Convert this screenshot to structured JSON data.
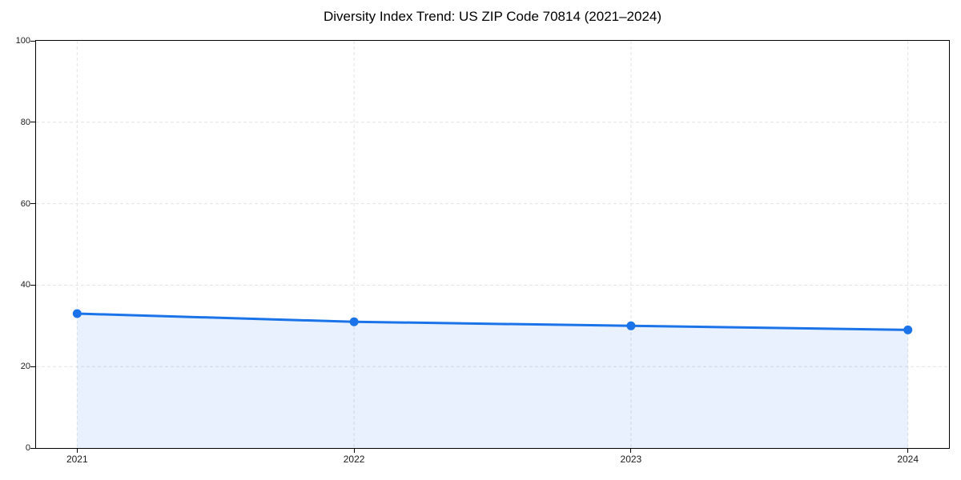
{
  "chart_data": {
    "type": "area",
    "title": "Diversity Index Trend: US ZIP Code 70814 (2021–2024)",
    "x": [
      "2021",
      "2022",
      "2023",
      "2024"
    ],
    "series": [
      {
        "name": "Diversity Index",
        "values": [
          33,
          31,
          30,
          29
        ]
      }
    ],
    "xlabel": "",
    "ylabel": "",
    "ylim": [
      0,
      100
    ],
    "yticks": [
      0,
      20,
      40,
      60,
      80,
      100
    ],
    "grid": true,
    "grid_style": "dashed",
    "legend_position": "none",
    "marker": "circle",
    "colors": {
      "line": "#1a73e8",
      "marker": "#1a73e8",
      "fill": "rgba(26,115,232,0.10)",
      "grid": "#e3e3e3",
      "spine": "#000000",
      "tick_text": "#1a1a1a",
      "title_text": "#000000",
      "background": "#ffffff"
    }
  }
}
